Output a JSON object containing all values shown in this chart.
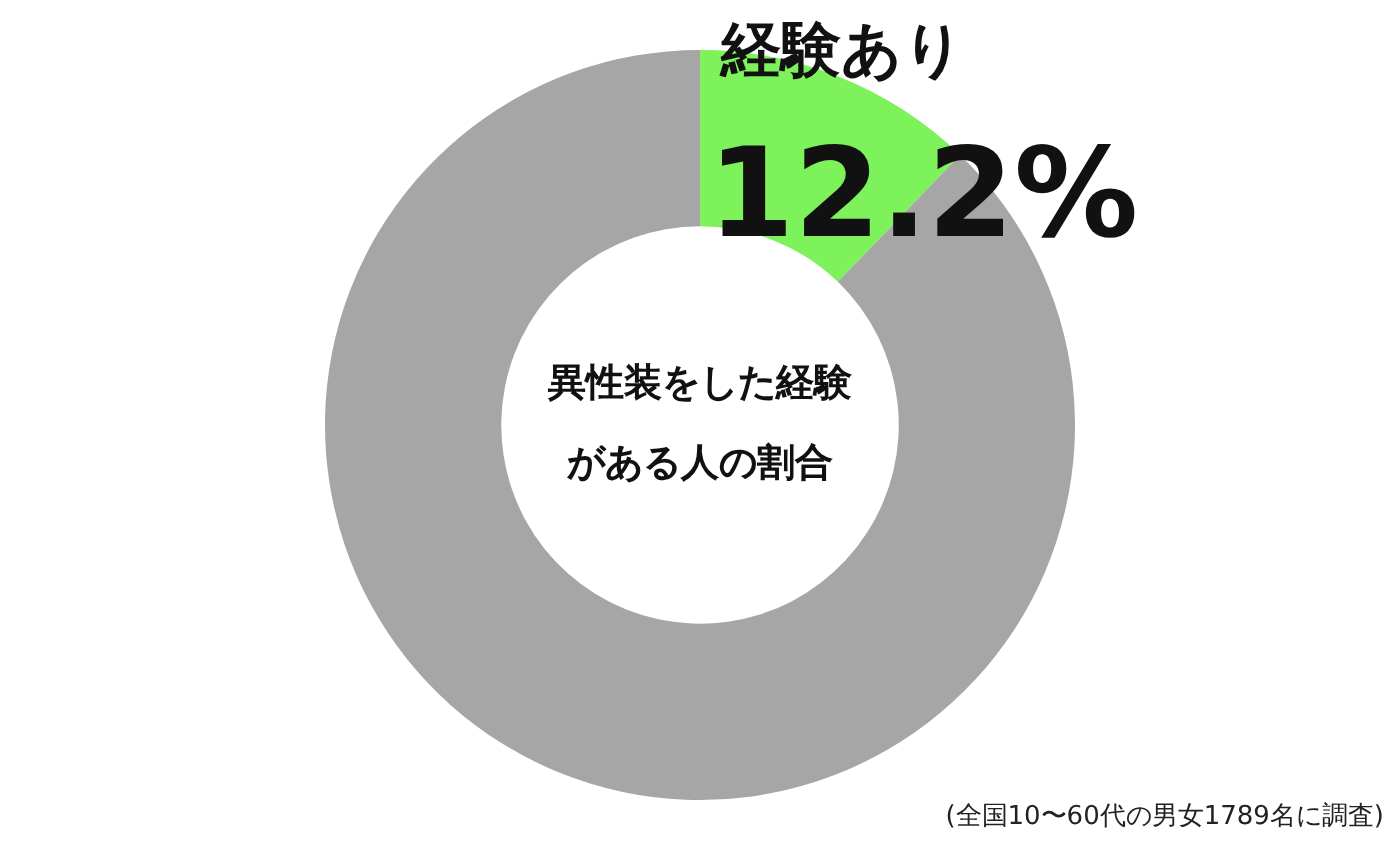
{
  "chart_data": {
    "type": "donut",
    "title": "異性装をした経験がある人の割合",
    "categories": [
      "経験あり",
      null
    ],
    "values": [
      12.2,
      87.8
    ],
    "colors": [
      "#7ef25a",
      "#a6a6a6"
    ],
    "value_labels": [
      "12.2%",
      null
    ],
    "legend": false,
    "annotations": [
      "(全国10〜60代の男女1789名に調査)"
    ]
  }
}
